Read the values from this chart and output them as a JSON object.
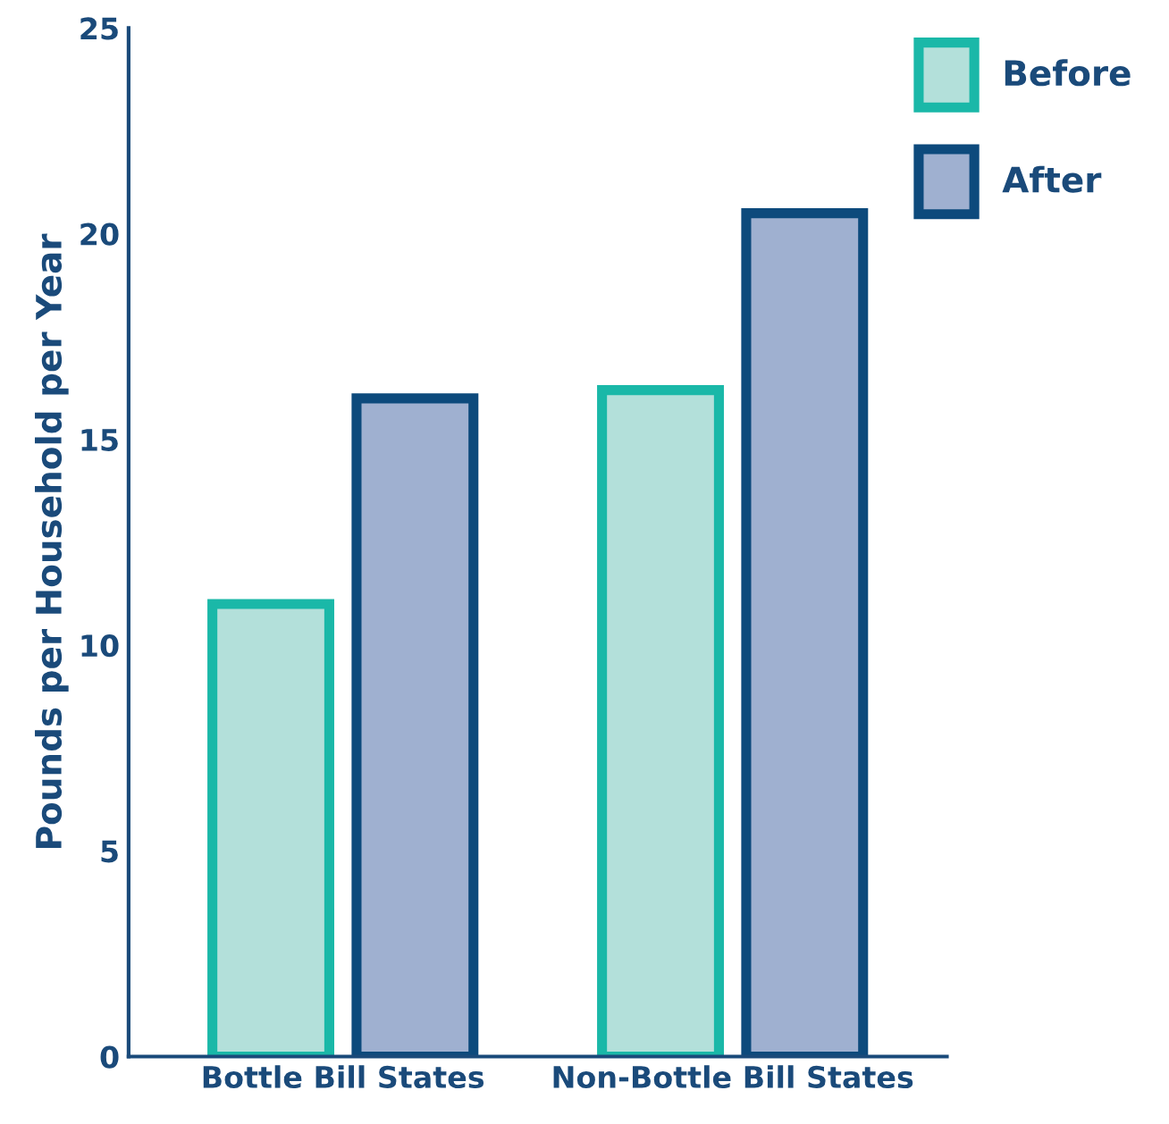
{
  "chart_data": {
    "type": "bar",
    "ylabel": "Pounds per Household per Year",
    "categories": [
      "Bottle Bill States",
      "Non-Bottle Bill States"
    ],
    "series": [
      {
        "name": "Before",
        "color": "#b3e0da",
        "values": [
          11,
          16.2
        ]
      },
      {
        "name": "After",
        "color": "#9fb0d0",
        "values": [
          16,
          20.5
        ]
      }
    ],
    "ylim": [
      0,
      25
    ],
    "yticks": [
      0,
      5,
      10,
      15,
      20,
      25
    ],
    "grid": false,
    "legend": "top right"
  }
}
